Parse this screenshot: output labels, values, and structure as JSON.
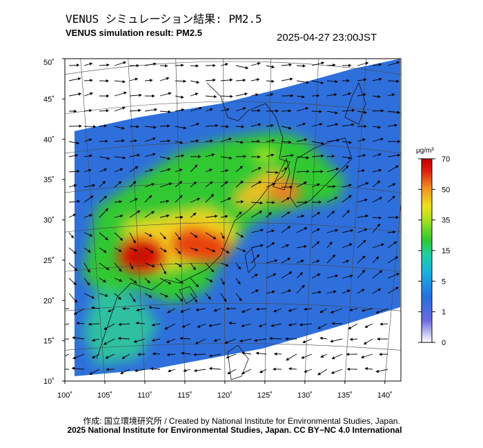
{
  "header": {
    "title_jp": "VENUS シミュレーション結果: PM2.5",
    "title_en": "VENUS simulation result: PM2.5",
    "datetime": "2025-04-27 23:00JST"
  },
  "map": {
    "lat_labels": [
      "50˚",
      "45˚",
      "40˚",
      "35˚",
      "30˚",
      "25˚",
      "20˚",
      "15˚",
      "10˚"
    ],
    "lon_labels": [
      "100˚",
      "105˚",
      "110˚",
      "115˚",
      "120˚",
      "125˚",
      "130˚",
      "135˚",
      "140˚"
    ],
    "lat_range": [
      10,
      50
    ],
    "lon_range": [
      100,
      142
    ],
    "hotspots": [
      {
        "lon": 109.5,
        "lat": 25.5,
        "value": 70
      },
      {
        "lon": 116,
        "lat": 27,
        "value": 60
      },
      {
        "lon": 118,
        "lat": 26.5,
        "value": 55
      },
      {
        "lon": 127.5,
        "lat": 33.5,
        "value": 40
      },
      {
        "lon": 125,
        "lat": 38,
        "value": 20
      }
    ]
  },
  "colorbar": {
    "unit": "μg/m³",
    "ticks": [
      "70",
      "50",
      "35",
      "15",
      "5",
      "1",
      "0"
    ],
    "colors": [
      "#ffffff",
      "#6a6ae0",
      "#2470e0",
      "#1ab0e0",
      "#20d0a0",
      "#30c830",
      "#a0e020",
      "#f0e020",
      "#f09020",
      "#e02010",
      "#c00000"
    ]
  },
  "footer": {
    "credit": "作成: 国立環境研究所 / Created by National Institute for Environmental Studies, Japan.",
    "license": "2025 National Institute for Environmental Studies, Japan. CC BY−NC 4.0 International"
  }
}
